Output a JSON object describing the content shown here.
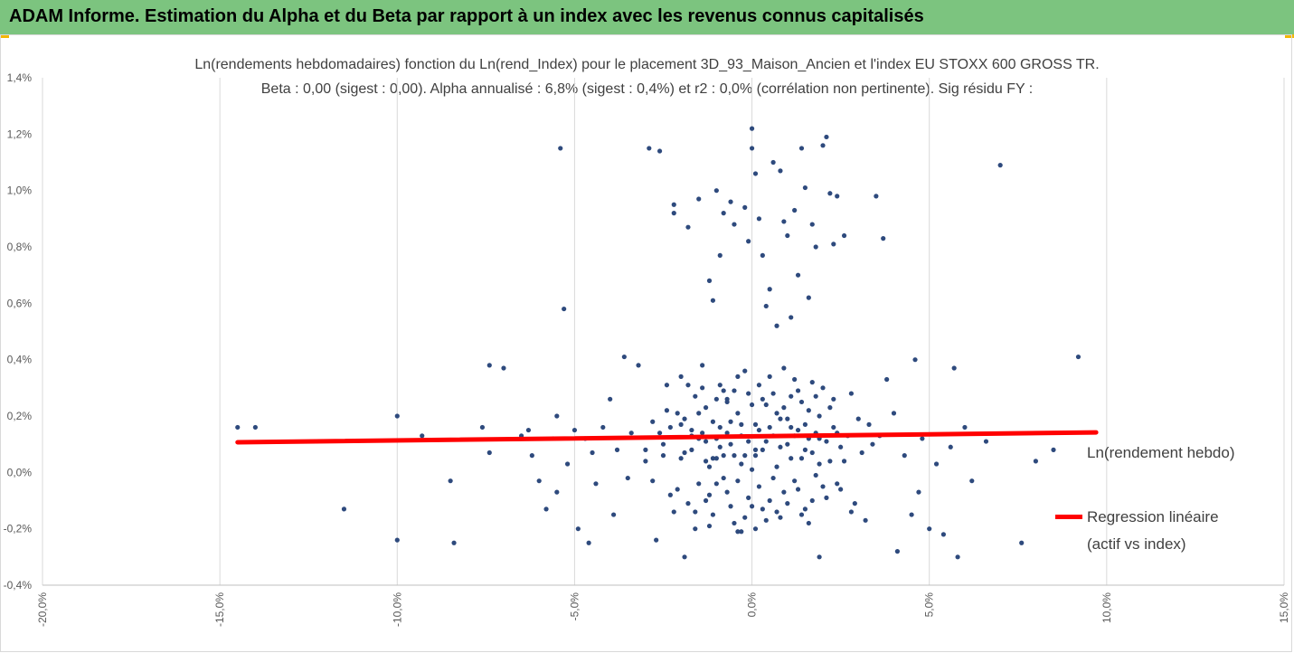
{
  "banner": {
    "title": "ADAM Informe. Estimation du Alpha et du Beta par rapport à un index avec les revenus connus capitalisés",
    "color": "#7cc47f",
    "accent": "#f2b705"
  },
  "chart_data": {
    "type": "scatter",
    "title": "Ln(rendements hebdomadaires) fonction du Ln(rend_Index) pour le placement 3D_93_Maison_Ancien et l'index EU STOXX 600 GROSS TR.",
    "subtitle": "Beta : 0,00 (sigest : 0,00). Alpha annualisé : 6,8% (sigest : 0,4%) et r2 : 0,0% (corrélation non pertinente). Sig résidu FY :",
    "xlim": [
      -0.2,
      0.15
    ],
    "ylim": [
      -0.004,
      0.014
    ],
    "x_ticks": [
      "-20,0%",
      "-15,0%",
      "-10,0%",
      "-5,0%",
      "0,0%",
      "5,0%",
      "10,0%",
      "15,0%"
    ],
    "x_tick_values": [
      -0.2,
      -0.15,
      -0.1,
      -0.05,
      0.0,
      0.05,
      0.1,
      0.15
    ],
    "y_ticks": [
      "-0,4%",
      "-0,2%",
      "0,0%",
      "0,2%",
      "0,4%",
      "0,6%",
      "0,8%",
      "1,0%",
      "1,2%",
      "1,4%"
    ],
    "y_tick_values": [
      -0.004,
      -0.002,
      0.0,
      0.002,
      0.004,
      0.006,
      0.008,
      0.01,
      0.012,
      0.014
    ],
    "grid": "vertical",
    "legend": [
      {
        "name": "Ln(rendement hebdo)",
        "color": "#2e4a7d"
      },
      {
        "name": "Regression linéaire",
        "name2": "(actif vs index)",
        "color": "#ff0000"
      }
    ],
    "regression": {
      "x": [
        -0.145,
        0.097
      ],
      "y": [
        0.00107,
        0.00142
      ],
      "color": "#ff0000"
    },
    "series": [
      {
        "name": "Ln(rendement hebdo)",
        "color": "#2e4a7d",
        "points": [
          [
            -0.145,
            0.0016
          ],
          [
            -0.14,
            0.0016
          ],
          [
            -0.115,
            -0.0013
          ],
          [
            -0.1,
            0.002
          ],
          [
            -0.1,
            -0.0024
          ],
          [
            -0.093,
            0.0013
          ],
          [
            -0.085,
            -0.0003
          ],
          [
            -0.084,
            -0.0025
          ],
          [
            -0.076,
            0.0016
          ],
          [
            -0.074,
            0.0038
          ],
          [
            -0.074,
            0.0007
          ],
          [
            -0.07,
            0.0037
          ],
          [
            -0.065,
            0.0013
          ],
          [
            -0.063,
            0.0015
          ],
          [
            -0.062,
            0.0006
          ],
          [
            -0.06,
            -0.0003
          ],
          [
            -0.058,
            -0.0013
          ],
          [
            -0.056,
            0.0012
          ],
          [
            -0.055,
            0.002
          ],
          [
            -0.055,
            -0.0007
          ],
          [
            -0.054,
            0.0115
          ],
          [
            -0.053,
            0.0058
          ],
          [
            -0.052,
            0.0003
          ],
          [
            -0.05,
            0.0015
          ],
          [
            -0.049,
            -0.002
          ],
          [
            -0.047,
            0.0012
          ],
          [
            -0.046,
            -0.0025
          ],
          [
            -0.045,
            0.0007
          ],
          [
            -0.044,
            -0.0004
          ],
          [
            -0.042,
            0.0016
          ],
          [
            -0.04,
            0.0026
          ],
          [
            -0.039,
            -0.0015
          ],
          [
            -0.038,
            0.0008
          ],
          [
            -0.036,
            0.0041
          ],
          [
            -0.035,
            -0.0002
          ],
          [
            -0.034,
            0.0014
          ],
          [
            -0.032,
            0.0038
          ],
          [
            -0.03,
            0.0004
          ],
          [
            -0.029,
            0.0115
          ],
          [
            -0.028,
            0.0018
          ],
          [
            -0.027,
            -0.0024
          ],
          [
            -0.026,
            0.0114
          ],
          [
            -0.025,
            0.0006
          ],
          [
            -0.024,
            0.0031
          ],
          [
            -0.023,
            -0.0008
          ],
          [
            -0.022,
            0.0092
          ],
          [
            -0.022,
            0.0095
          ],
          [
            -0.021,
            0.0021
          ],
          [
            -0.02,
            0.0034
          ],
          [
            -0.019,
            -0.003
          ],
          [
            -0.018,
            0.0087
          ],
          [
            -0.017,
            0.0015
          ],
          [
            -0.016,
            -0.0014
          ],
          [
            -0.015,
            0.0097
          ],
          [
            -0.014,
            0.0038
          ],
          [
            -0.013,
            0.0011
          ],
          [
            -0.012,
            0.0068
          ],
          [
            -0.011,
            0.0061
          ],
          [
            -0.01,
            0.01
          ],
          [
            -0.01,
            -0.0004
          ],
          [
            -0.009,
            0.0077
          ],
          [
            -0.008,
            0.0092
          ],
          [
            -0.007,
            0.0025
          ],
          [
            -0.006,
            0.0096
          ],
          [
            -0.005,
            0.0088
          ],
          [
            -0.004,
            0.0034
          ],
          [
            -0.003,
            -0.0021
          ],
          [
            -0.002,
            0.0094
          ],
          [
            -0.001,
            0.0082
          ],
          [
            0.0,
            0.0122
          ],
          [
            0.0,
            0.0115
          ],
          [
            0.001,
            0.0106
          ],
          [
            0.001,
            0.0008
          ],
          [
            0.002,
            0.009
          ],
          [
            0.003,
            0.0077
          ],
          [
            0.004,
            0.0059
          ],
          [
            0.005,
            0.0065
          ],
          [
            0.006,
            0.011
          ],
          [
            0.007,
            0.0052
          ],
          [
            0.008,
            0.0107
          ],
          [
            0.009,
            0.0089
          ],
          [
            0.01,
            0.0084
          ],
          [
            0.011,
            0.0055
          ],
          [
            0.012,
            0.0093
          ],
          [
            0.013,
            0.007
          ],
          [
            0.014,
            0.0115
          ],
          [
            0.015,
            0.0101
          ],
          [
            0.016,
            0.0062
          ],
          [
            0.017,
            0.0088
          ],
          [
            0.018,
            0.008
          ],
          [
            0.019,
            -0.003
          ],
          [
            0.02,
            0.0116
          ],
          [
            0.021,
            0.0119
          ],
          [
            0.022,
            0.0099
          ],
          [
            0.023,
            0.0081
          ],
          [
            0.024,
            0.0098
          ],
          [
            0.026,
            0.0084
          ],
          [
            0.028,
            0.0028
          ],
          [
            0.03,
            0.0019
          ],
          [
            0.032,
            -0.0017
          ],
          [
            0.034,
            0.001
          ],
          [
            0.035,
            0.0098
          ],
          [
            0.036,
            0.0013
          ],
          [
            0.037,
            0.0083
          ],
          [
            0.038,
            0.0033
          ],
          [
            0.04,
            0.0021
          ],
          [
            0.041,
            -0.0028
          ],
          [
            0.043,
            0.0006
          ],
          [
            0.045,
            -0.0015
          ],
          [
            0.046,
            0.004
          ],
          [
            0.047,
            -0.0007
          ],
          [
            0.048,
            0.0012
          ],
          [
            0.05,
            -0.002
          ],
          [
            0.052,
            0.0003
          ],
          [
            0.054,
            -0.0022
          ],
          [
            0.056,
            0.0009
          ],
          [
            0.057,
            0.0037
          ],
          [
            0.058,
            -0.003
          ],
          [
            0.06,
            0.0016
          ],
          [
            0.062,
            -0.0003
          ],
          [
            0.066,
            0.0011
          ],
          [
            0.07,
            0.0109
          ],
          [
            0.076,
            -0.0025
          ],
          [
            0.08,
            0.0004
          ],
          [
            0.085,
            0.0008
          ],
          [
            0.092,
            0.0041
          ],
          [
            -0.015,
            0.0012
          ],
          [
            -0.013,
            0.0004
          ],
          [
            -0.012,
            -0.0008
          ],
          [
            -0.011,
            0.0018
          ],
          [
            -0.01,
            0.0026
          ],
          [
            -0.009,
            0.0009
          ],
          [
            -0.008,
            -0.0002
          ],
          [
            -0.007,
            0.0014
          ],
          [
            -0.006,
            -0.0012
          ],
          [
            -0.005,
            0.0006
          ],
          [
            -0.004,
            0.0021
          ],
          [
            -0.003,
            0.0003
          ],
          [
            -0.002,
            -0.0016
          ],
          [
            -0.001,
            0.0011
          ],
          [
            0.0,
            0.0001
          ],
          [
            0.001,
            0.0017
          ],
          [
            0.002,
            -0.0005
          ],
          [
            0.003,
            0.0008
          ],
          [
            0.004,
            0.0024
          ],
          [
            0.005,
            -0.001
          ],
          [
            0.006,
            0.0013
          ],
          [
            0.007,
            0.0002
          ],
          [
            0.008,
            0.0019
          ],
          [
            0.009,
            -0.0007
          ],
          [
            0.01,
            0.001
          ],
          [
            0.011,
            0.0027
          ],
          [
            0.012,
            -0.0003
          ],
          [
            0.013,
            0.0015
          ],
          [
            0.014,
            0.0005
          ],
          [
            0.015,
            -0.0013
          ],
          [
            0.016,
            0.0022
          ],
          [
            0.017,
            0.0007
          ],
          [
            0.018,
            -0.0001
          ],
          [
            0.019,
            0.0012
          ],
          [
            0.02,
            0.003
          ],
          [
            0.021,
            -0.0009
          ],
          [
            0.022,
            0.0004
          ],
          [
            0.023,
            0.0016
          ],
          [
            0.024,
            -0.0004
          ],
          [
            0.025,
            0.0009
          ],
          [
            -0.02,
            0.0005
          ],
          [
            -0.019,
            0.0019
          ],
          [
            -0.018,
            -0.0011
          ],
          [
            -0.017,
            0.0008
          ],
          [
            -0.016,
            0.0027
          ],
          [
            -0.015,
            -0.0004
          ],
          [
            -0.014,
            0.0014
          ],
          [
            -0.013,
            0.0023
          ],
          [
            -0.012,
            0.0002
          ],
          [
            -0.011,
            -0.0015
          ],
          [
            -0.01,
            0.0012
          ],
          [
            -0.009,
            0.0031
          ],
          [
            -0.008,
            0.0006
          ],
          [
            -0.007,
            -0.0007
          ],
          [
            -0.006,
            0.0018
          ],
          [
            -0.005,
            0.0029
          ],
          [
            -0.004,
            -0.0003
          ],
          [
            -0.003,
            0.0013
          ],
          [
            -0.002,
            0.0036
          ],
          [
            -0.001,
            -0.0009
          ],
          [
            0.0,
            0.0024
          ],
          [
            0.001,
            0.0006
          ],
          [
            0.002,
            0.0031
          ],
          [
            0.003,
            -0.0013
          ],
          [
            0.004,
            0.0011
          ],
          [
            0.005,
            0.0034
          ],
          [
            0.006,
            -0.0002
          ],
          [
            0.007,
            0.0021
          ],
          [
            0.008,
            0.0009
          ],
          [
            0.009,
            0.0037
          ],
          [
            0.01,
            -0.0011
          ],
          [
            0.011,
            0.0016
          ],
          [
            0.012,
            0.0033
          ],
          [
            0.013,
            -0.0006
          ],
          [
            0.014,
            0.0025
          ],
          [
            0.015,
            0.0008
          ],
          [
            0.016,
            -0.0018
          ],
          [
            0.017,
            0.0032
          ],
          [
            0.018,
            0.0014
          ],
          [
            0.019,
            0.0003
          ],
          [
            -0.025,
            0.001
          ],
          [
            -0.023,
            0.0016
          ],
          [
            -0.021,
            -0.0006
          ],
          [
            -0.019,
            0.0007
          ],
          [
            -0.017,
            0.0013
          ],
          [
            -0.015,
            0.0021
          ],
          [
            -0.013,
            -0.001
          ],
          [
            -0.011,
            0.0005
          ],
          [
            -0.009,
            0.0016
          ],
          [
            -0.007,
            0.0026
          ],
          [
            -0.005,
            -0.0018
          ],
          [
            -0.003,
            0.0017
          ],
          [
            -0.001,
            0.0028
          ],
          [
            0.001,
            -0.002
          ],
          [
            0.003,
            0.0026
          ],
          [
            0.005,
            0.0016
          ],
          [
            0.007,
            -0.0014
          ],
          [
            0.009,
            0.0023
          ],
          [
            0.011,
            0.0005
          ],
          [
            0.013,
            0.0029
          ],
          [
            0.015,
            0.0017
          ],
          [
            0.017,
            -0.001
          ],
          [
            0.019,
            0.002
          ],
          [
            0.021,
            0.0011
          ],
          [
            0.023,
            0.0026
          ],
          [
            0.025,
            -0.0006
          ],
          [
            0.027,
            0.0013
          ],
          [
            0.029,
            -0.0011
          ],
          [
            0.031,
            0.0007
          ],
          [
            0.033,
            0.0017
          ],
          [
            -0.03,
            0.0008
          ],
          [
            -0.028,
            -0.0003
          ],
          [
            -0.026,
            0.0014
          ],
          [
            -0.024,
            0.0022
          ],
          [
            -0.022,
            -0.0014
          ],
          [
            -0.02,
            0.0017
          ],
          [
            -0.018,
            0.0031
          ],
          [
            -0.016,
            -0.002
          ],
          [
            -0.014,
            0.003
          ],
          [
            -0.012,
            -0.0019
          ],
          [
            -0.01,
            0.0005
          ],
          [
            -0.008,
            0.0029
          ],
          [
            -0.006,
            0.001
          ],
          [
            -0.004,
            -0.0021
          ],
          [
            -0.002,
            0.0006
          ],
          [
            0.0,
            -0.0012
          ],
          [
            0.002,
            0.0015
          ],
          [
            0.004,
            -0.0017
          ],
          [
            0.006,
            0.0028
          ],
          [
            0.008,
            -0.0016
          ],
          [
            0.01,
            0.0019
          ],
          [
            0.012,
            0.0013
          ],
          [
            0.014,
            -0.0015
          ],
          [
            0.016,
            0.0012
          ],
          [
            0.018,
            0.0027
          ],
          [
            0.02,
            -0.0005
          ],
          [
            0.022,
            0.0023
          ],
          [
            0.024,
            0.0014
          ],
          [
            0.026,
            0.0004
          ],
          [
            0.028,
            -0.0014
          ]
        ]
      }
    ]
  }
}
